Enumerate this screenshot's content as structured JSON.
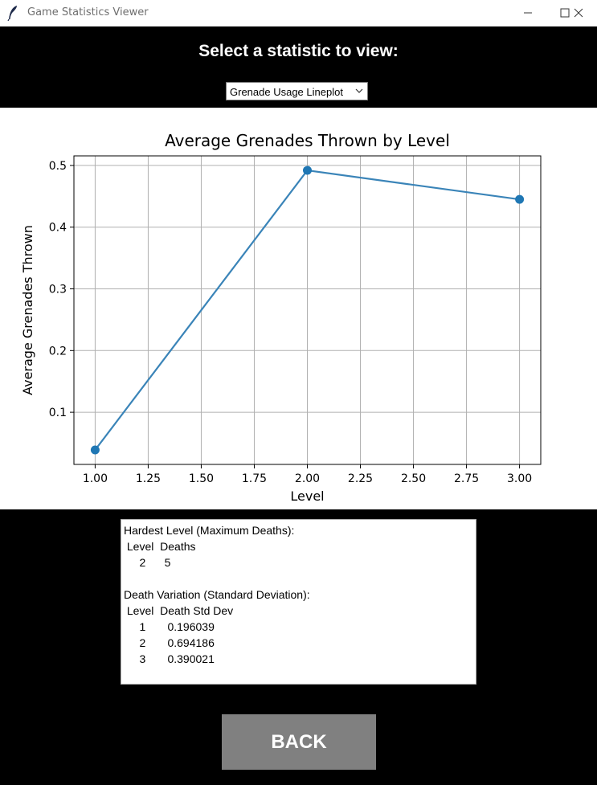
{
  "window": {
    "title": "Game Statistics Viewer"
  },
  "header": {
    "heading": "Select a statistic to view:",
    "selected_statistic": "Grenade Usage Lineplot"
  },
  "chart_data": {
    "type": "line",
    "title": "Average Grenades Thrown by Level",
    "xlabel": "Level",
    "ylabel": "Average Grenades Thrown",
    "x": [
      1.0,
      2.0,
      3.0
    ],
    "y": [
      0.039,
      0.492,
      0.445
    ],
    "xlim": [
      0.9,
      3.1
    ],
    "ylim": [
      0.0155,
      0.5155
    ],
    "xticks": [
      1.0,
      1.25,
      1.5,
      1.75,
      2.0,
      2.25,
      2.5,
      2.75,
      3.0
    ],
    "xtick_labels": [
      "1.00",
      "1.25",
      "1.50",
      "1.75",
      "2.00",
      "2.25",
      "2.50",
      "2.75",
      "3.00"
    ],
    "yticks": [
      0.1,
      0.2,
      0.3,
      0.4,
      0.5
    ],
    "ytick_labels": [
      "0.1",
      "0.2",
      "0.3",
      "0.4",
      "0.5"
    ],
    "grid": true,
    "line_color": "#3a84b8",
    "marker_color": "#1f77b4"
  },
  "stats": {
    "hardest_title": "Hardest Level (Maximum Deaths):",
    "hardest_header": " Level  Deaths",
    "hardest_rows": [
      "     2      5"
    ],
    "variation_title": "Death Variation (Standard Deviation):",
    "variation_header": " Level  Death Std Dev",
    "variation_rows": [
      "     1       0.196039",
      "     2       0.694186",
      "     3       0.390021"
    ]
  },
  "footer": {
    "back_label": "BACK"
  }
}
